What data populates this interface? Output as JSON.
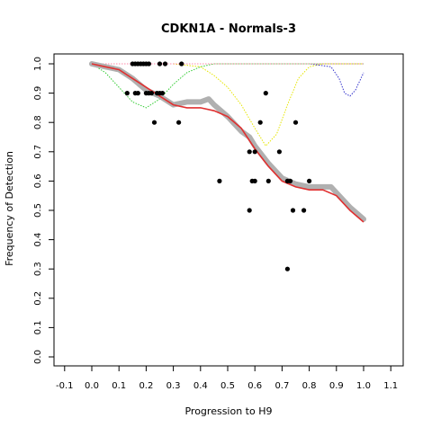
{
  "chart_data": {
    "type": "scatter",
    "title": "CDKN1A - Normals-3",
    "xlabel": "Progression to H9",
    "ylabel": "Frequency of Detection",
    "xlim": [
      -0.15,
      1.15
    ],
    "ylim": [
      -0.03,
      1.04
    ],
    "grid": false,
    "x_ticks": [
      "-0.1",
      "0.0",
      "0.1",
      "0.2",
      "0.3",
      "0.4",
      "0.5",
      "0.6",
      "0.7",
      "0.8",
      "0.9",
      "1.0",
      "1.1"
    ],
    "y_ticks": [
      "0.0",
      "0.1",
      "0.2",
      "0.3",
      "0.4",
      "0.5",
      "0.6",
      "0.7",
      "0.8",
      "0.9",
      "1.0"
    ],
    "colors": {
      "points": "#000000",
      "smoothed_band": "#b0b0b0",
      "fit_line": "#e03030",
      "green_dotted": "#33cc33",
      "yellow_dotted": "#e6e600",
      "blue_dotted": "#3333cc",
      "pink_dotted": "#ff88aa"
    },
    "series": [
      {
        "role": "observations",
        "points": [
          {
            "x": 0.15,
            "y": 1.0
          },
          {
            "x": 0.16,
            "y": 1.0
          },
          {
            "x": 0.17,
            "y": 1.0
          },
          {
            "x": 0.18,
            "y": 1.0
          },
          {
            "x": 0.19,
            "y": 1.0
          },
          {
            "x": 0.2,
            "y": 1.0
          },
          {
            "x": 0.21,
            "y": 1.0
          },
          {
            "x": 0.25,
            "y": 1.0
          },
          {
            "x": 0.27,
            "y": 1.0
          },
          {
            "x": 0.33,
            "y": 1.0
          },
          {
            "x": 0.13,
            "y": 0.9
          },
          {
            "x": 0.16,
            "y": 0.9
          },
          {
            "x": 0.17,
            "y": 0.9
          },
          {
            "x": 0.2,
            "y": 0.9
          },
          {
            "x": 0.21,
            "y": 0.9
          },
          {
            "x": 0.22,
            "y": 0.9
          },
          {
            "x": 0.24,
            "y": 0.9
          },
          {
            "x": 0.25,
            "y": 0.9
          },
          {
            "x": 0.26,
            "y": 0.9
          },
          {
            "x": 0.64,
            "y": 0.9
          },
          {
            "x": 0.23,
            "y": 0.8
          },
          {
            "x": 0.32,
            "y": 0.8
          },
          {
            "x": 0.62,
            "y": 0.8
          },
          {
            "x": 0.75,
            "y": 0.8
          },
          {
            "x": 0.58,
            "y": 0.7
          },
          {
            "x": 0.6,
            "y": 0.7
          },
          {
            "x": 0.69,
            "y": 0.7
          },
          {
            "x": 0.47,
            "y": 0.6
          },
          {
            "x": 0.59,
            "y": 0.6
          },
          {
            "x": 0.6,
            "y": 0.6
          },
          {
            "x": 0.65,
            "y": 0.6
          },
          {
            "x": 0.72,
            "y": 0.6
          },
          {
            "x": 0.73,
            "y": 0.6
          },
          {
            "x": 0.8,
            "y": 0.6
          },
          {
            "x": 0.58,
            "y": 0.5
          },
          {
            "x": 0.74,
            "y": 0.5
          },
          {
            "x": 0.78,
            "y": 0.5
          },
          {
            "x": 0.72,
            "y": 0.3
          }
        ]
      },
      {
        "role": "fit",
        "x": [
          0.0,
          0.05,
          0.1,
          0.15,
          0.2,
          0.25,
          0.3,
          0.35,
          0.4,
          0.45,
          0.5,
          0.55,
          0.6,
          0.65,
          0.7,
          0.75,
          0.8,
          0.85,
          0.9,
          0.95,
          1.0
        ],
        "y": [
          1.0,
          0.99,
          0.98,
          0.95,
          0.92,
          0.89,
          0.86,
          0.85,
          0.85,
          0.84,
          0.82,
          0.78,
          0.71,
          0.65,
          0.6,
          0.58,
          0.57,
          0.57,
          0.55,
          0.5,
          0.46
        ]
      },
      {
        "role": "smoothed-band",
        "x": [
          0.0,
          0.05,
          0.1,
          0.15,
          0.2,
          0.25,
          0.3,
          0.35,
          0.4,
          0.43,
          0.45,
          0.5,
          0.55,
          0.58,
          0.6,
          0.65,
          0.7,
          0.75,
          0.8,
          0.85,
          0.88,
          0.9,
          0.95,
          1.0
        ],
        "y": [
          1.0,
          0.99,
          0.98,
          0.95,
          0.91,
          0.89,
          0.86,
          0.87,
          0.87,
          0.88,
          0.86,
          0.82,
          0.77,
          0.75,
          0.72,
          0.66,
          0.61,
          0.59,
          0.58,
          0.58,
          0.58,
          0.56,
          0.51,
          0.47
        ]
      },
      {
        "role": "dotted-reference",
        "color": "green",
        "x": [
          0.0,
          0.05,
          0.1,
          0.15,
          0.2,
          0.25,
          0.3,
          0.35,
          0.4,
          0.45,
          0.5,
          1.0
        ],
        "y": [
          1.0,
          0.97,
          0.92,
          0.87,
          0.85,
          0.88,
          0.93,
          0.97,
          0.99,
          1.0,
          1.0,
          1.0
        ]
      },
      {
        "role": "dotted-reference",
        "color": "yellow",
        "x": [
          0.3,
          0.4,
          0.45,
          0.5,
          0.55,
          0.6,
          0.64,
          0.68,
          0.72,
          0.76,
          0.8,
          0.85,
          0.9,
          1.0
        ],
        "y": [
          1.0,
          0.99,
          0.96,
          0.92,
          0.86,
          0.78,
          0.72,
          0.76,
          0.86,
          0.95,
          0.99,
          1.0,
          1.0,
          1.0
        ]
      },
      {
        "role": "dotted-reference",
        "color": "blue",
        "x": [
          0.0,
          0.8,
          0.88,
          0.91,
          0.93,
          0.95,
          0.97,
          0.99,
          1.0
        ],
        "y": [
          1.0,
          1.0,
          0.99,
          0.95,
          0.9,
          0.89,
          0.91,
          0.95,
          0.97
        ]
      },
      {
        "role": "dotted-reference",
        "color": "pink",
        "x": [
          0.0,
          1.0
        ],
        "y": [
          1.0,
          1.0
        ]
      }
    ]
  }
}
